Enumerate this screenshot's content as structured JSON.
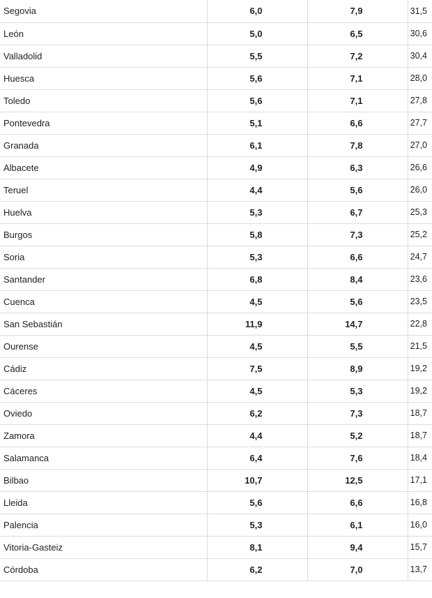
{
  "rows": [
    [
      "Segovia",
      "6,0",
      "7,9",
      "31,5"
    ],
    [
      "León",
      "5,0",
      "6,5",
      "30,6"
    ],
    [
      "Valladolid",
      "5,5",
      "7,2",
      "30,4"
    ],
    [
      "Huesca",
      "5,6",
      "7,1",
      "28,0"
    ],
    [
      "Toledo",
      "5,6",
      "7,1",
      "27,8"
    ],
    [
      "Pontevedra",
      "5,1",
      "6,6",
      "27,7"
    ],
    [
      "Granada",
      "6,1",
      "7,8",
      "27,0"
    ],
    [
      "Albacete",
      "4,9",
      "6,3",
      "26,6"
    ],
    [
      "Teruel",
      "4,4",
      "5,6",
      "26,0"
    ],
    [
      "Huelva",
      "5,3",
      "6,7",
      "25,3"
    ],
    [
      "Burgos",
      "5,8",
      "7,3",
      "25,2"
    ],
    [
      "Soria",
      "5,3",
      "6,6",
      "24,7"
    ],
    [
      "Santander",
      "6,8",
      "8,4",
      "23,6"
    ],
    [
      "Cuenca",
      "4,5",
      "5,6",
      "23,5"
    ],
    [
      "San Sebastián",
      "11,9",
      "14,7",
      "22,8"
    ],
    [
      "Ourense",
      "4,5",
      "5,5",
      "21,5"
    ],
    [
      "Cádiz",
      "7,5",
      "8,9",
      "19,2"
    ],
    [
      "Cáceres",
      "4,5",
      "5,3",
      "19,2"
    ],
    [
      "Oviedo",
      "6,2",
      "7,3",
      "18,7"
    ],
    [
      "Zamora",
      "4,4",
      "5,2",
      "18,7"
    ],
    [
      "Salamanca",
      "6,4",
      "7,6",
      "18,4"
    ],
    [
      "Bilbao",
      "10,7",
      "12,5",
      "17,1"
    ],
    [
      "Lleida",
      "5,6",
      "6,6",
      "16,8"
    ],
    [
      "Palencia",
      "5,3",
      "6,1",
      "16,0"
    ],
    [
      "Vitoria-Gasteiz",
      "8,1",
      "9,4",
      "15,7"
    ],
    [
      "Córdoba",
      "6,2",
      "7,0",
      "13,7"
    ]
  ]
}
